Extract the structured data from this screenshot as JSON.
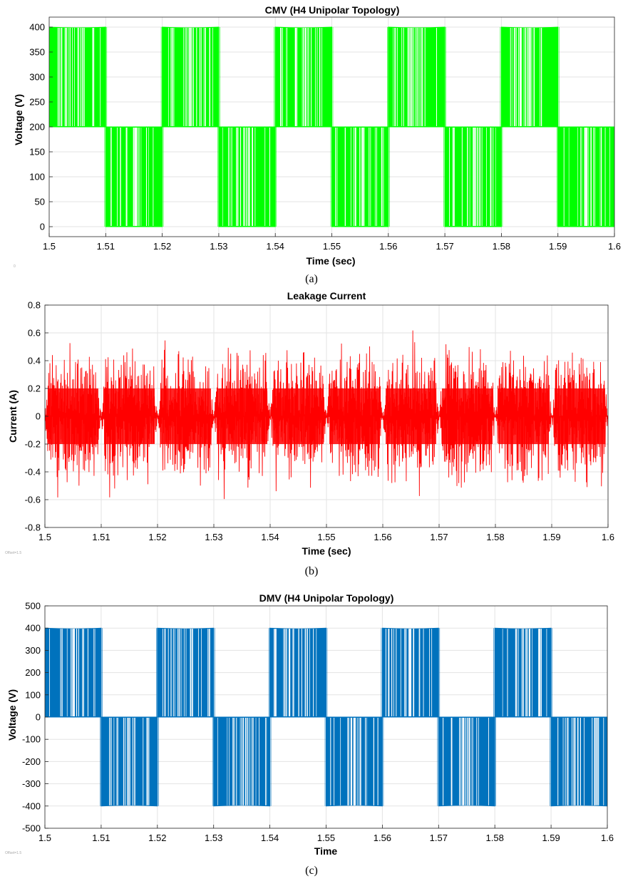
{
  "chart_data": [
    {
      "type": "line",
      "title": "CMV (H4 Unipolar Topology)",
      "xlabel": "Time (sec)",
      "ylabel": "Voltage (V)",
      "caption": "(a)",
      "corner_note": "0",
      "xlim": [
        1.5,
        1.6
      ],
      "ylim": [
        -20,
        420
      ],
      "grid": true,
      "x_ticks": [
        "1.5",
        "1.51",
        "1.52",
        "1.53",
        "1.54",
        "1.55",
        "1.56",
        "1.57",
        "1.58",
        "1.59",
        "1.6"
      ],
      "y_ticks": [
        "0",
        "50",
        "100",
        "150",
        "200",
        "250",
        "300",
        "350",
        "400"
      ],
      "series": [
        {
          "color": "#00ff00",
          "segments": [
            {
              "x": [
                1.5,
                1.51
              ],
              "low": 200,
              "high": 400
            },
            {
              "x": [
                1.51,
                1.52
              ],
              "low": 0,
              "high": 200
            },
            {
              "x": [
                1.52,
                1.53
              ],
              "low": 200,
              "high": 400
            },
            {
              "x": [
                1.53,
                1.54
              ],
              "low": 0,
              "high": 200
            },
            {
              "x": [
                1.54,
                1.55
              ],
              "low": 200,
              "high": 400
            },
            {
              "x": [
                1.55,
                1.56
              ],
              "low": 0,
              "high": 200
            },
            {
              "x": [
                1.56,
                1.57
              ],
              "low": 200,
              "high": 400
            },
            {
              "x": [
                1.57,
                1.58
              ],
              "low": 0,
              "high": 200
            },
            {
              "x": [
                1.58,
                1.59
              ],
              "low": 200,
              "high": 400
            },
            {
              "x": [
                1.59,
                1.6
              ],
              "low": 0,
              "high": 200
            }
          ]
        }
      ]
    },
    {
      "type": "line",
      "title": "Leakage Current",
      "xlabel": "Time (sec)",
      "ylabel": "Current (A)",
      "caption": "(b)",
      "corner_note": "Offset=1.5",
      "xlim": [
        1.5,
        1.6
      ],
      "ylim": [
        -0.8,
        0.8
      ],
      "grid": true,
      "x_ticks": [
        "1.5",
        "1.51",
        "1.52",
        "1.53",
        "1.54",
        "1.55",
        "1.56",
        "1.57",
        "1.58",
        "1.59",
        "1.6"
      ],
      "y_ticks": [
        "-0.8",
        "-0.6",
        "-0.4",
        "-0.2",
        "0",
        "0.2",
        "0.4",
        "0.6",
        "0.8"
      ],
      "series": [
        {
          "color": "#ff0000",
          "envelope_peak": 0.65,
          "zero_crossings": [
            1.5,
            1.51,
            1.52,
            1.53,
            1.54,
            1.55,
            1.56,
            1.57,
            1.58,
            1.59,
            1.6
          ]
        }
      ]
    },
    {
      "type": "line",
      "title": "DMV (H4 Unipolar Topology)",
      "xlabel": "Time",
      "ylabel": "Voltage (V)",
      "caption": "(c)",
      "corner_note": "Offset=1.5",
      "xlim": [
        1.5,
        1.6
      ],
      "ylim": [
        -500,
        500
      ],
      "grid": true,
      "x_ticks": [
        "1.5",
        "1.51",
        "1.52",
        "1.53",
        "1.54",
        "1.55",
        "1.56",
        "1.57",
        "1.58",
        "1.59",
        "1.6"
      ],
      "y_ticks": [
        "-500",
        "-400",
        "-300",
        "-200",
        "-100",
        "0",
        "100",
        "200",
        "300",
        "400",
        "500"
      ],
      "series": [
        {
          "color": "#0072bd",
          "segments": [
            {
              "x": [
                1.5,
                1.51
              ],
              "low": 0,
              "high": 400
            },
            {
              "x": [
                1.51,
                1.52
              ],
              "low": -400,
              "high": 0
            },
            {
              "x": [
                1.52,
                1.53
              ],
              "low": 0,
              "high": 400
            },
            {
              "x": [
                1.53,
                1.54
              ],
              "low": -400,
              "high": 0
            },
            {
              "x": [
                1.54,
                1.55
              ],
              "low": 0,
              "high": 400
            },
            {
              "x": [
                1.55,
                1.56
              ],
              "low": -400,
              "high": 0
            },
            {
              "x": [
                1.56,
                1.57
              ],
              "low": 0,
              "high": 400
            },
            {
              "x": [
                1.57,
                1.58
              ],
              "low": -400,
              "high": 0
            },
            {
              "x": [
                1.58,
                1.59
              ],
              "low": 0,
              "high": 400
            },
            {
              "x": [
                1.59,
                1.6
              ],
              "low": -400,
              "high": 0
            }
          ]
        }
      ]
    }
  ]
}
